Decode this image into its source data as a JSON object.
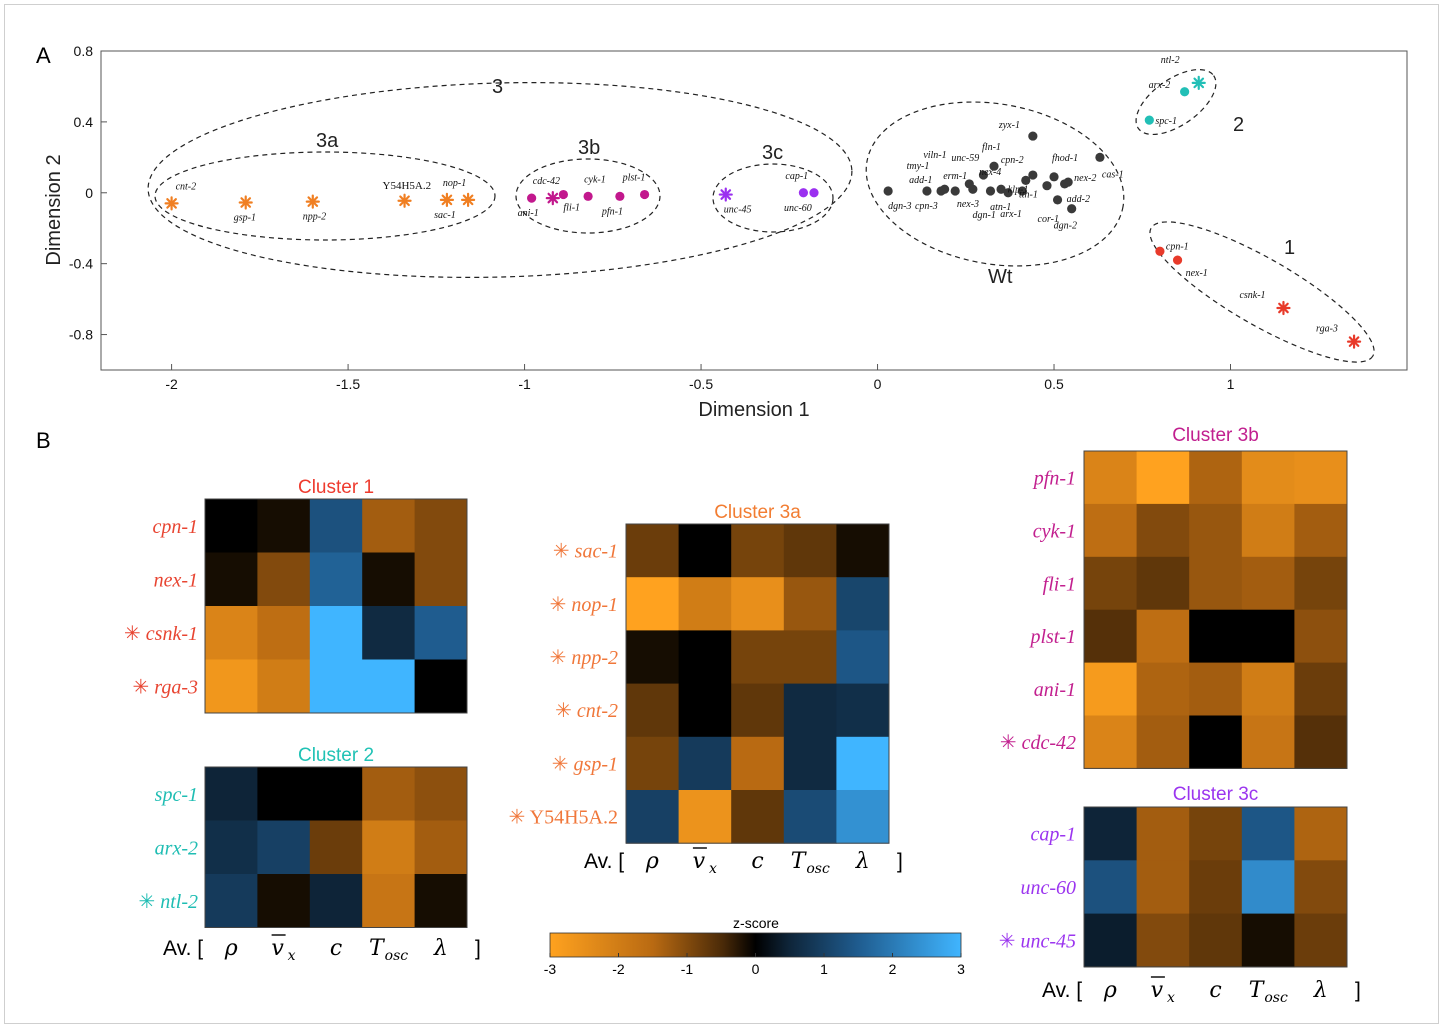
{
  "colors": {
    "orange": "#f07f22",
    "magenta": "#c2188d",
    "purple": "#9b30f0",
    "teal": "#22bfb6",
    "red": "#e83a2a",
    "wt": "#3a3a3a",
    "cluster1_title": "#ee3b2e",
    "cluster2_title": "#20c2b5",
    "cluster3a_title": "#f27d32",
    "cluster3b_title": "#c11f8f",
    "cluster3c_title": "#9b35ef"
  },
  "panel_a": {
    "letter": "A",
    "xlabel": "Dimension 1",
    "ylabel": "Dimension 2",
    "xticks": [
      "-2",
      "-1.5",
      "-1",
      "-0.5",
      "0",
      "0.5",
      "1"
    ],
    "yticks": [
      "0.8",
      "0.4",
      "0",
      "-0.4",
      "-0.8"
    ],
    "cluster_labels": {
      "c3": "3",
      "c3a": "3a",
      "c3b": "3b",
      "c3c": "3c",
      "wt": "Wt",
      "c2": "2",
      "c1": "1"
    }
  },
  "panel_b": {
    "letter": "B",
    "colorbar": {
      "title": "z-score",
      "ticks": [
        "-3",
        "-2",
        "-1",
        "0",
        "1",
        "2",
        "3"
      ],
      "range": [
        -3,
        3
      ]
    },
    "column_labels": {
      "av": "Av. [",
      "rho": "ρ",
      "v": "v",
      "v_sub": "x",
      "c": "c",
      "t": "T",
      "t_sub": "osc",
      "lambda": "λ",
      "close": "]"
    },
    "star": "✳"
  },
  "chart_data": [
    {
      "type": "scatter",
      "xlabel": "Dimension 1",
      "ylabel": "Dimension 2",
      "xlim": [
        -2.2,
        1.5
      ],
      "ylim": [
        -1.0,
        0.8
      ],
      "grid": false,
      "groups": [
        {
          "name": "3a",
          "color": "#f07f22",
          "points": [
            {
              "label": "cnt-2",
              "x": -2.0,
              "y": -0.06,
              "marker": "star"
            },
            {
              "label": "gsp-1",
              "x": -1.79,
              "y": -0.055,
              "marker": "star"
            },
            {
              "label": "npp-2",
              "x": -1.6,
              "y": -0.05,
              "marker": "star"
            },
            {
              "label": "Y54H5A.2",
              "x": -1.34,
              "y": -0.045,
              "marker": "star"
            },
            {
              "label": "nop-1",
              "x": -1.22,
              "y": -0.04,
              "marker": "star"
            },
            {
              "label": "sac-1",
              "x": -1.16,
              "y": -0.04,
              "marker": "star"
            }
          ]
        },
        {
          "name": "3b",
          "color": "#c2188d",
          "points": [
            {
              "label": "ani-1",
              "x": -0.98,
              "y": -0.03,
              "marker": "dot"
            },
            {
              "label": "cdc-42",
              "x": -0.92,
              "y": -0.03,
              "marker": "star"
            },
            {
              "label": "fli-1",
              "x": -0.89,
              "y": -0.01,
              "marker": "dot"
            },
            {
              "label": "cyk-1",
              "x": -0.82,
              "y": -0.02,
              "marker": "dot"
            },
            {
              "label": "pfn-1",
              "x": -0.73,
              "y": -0.02,
              "marker": "dot"
            },
            {
              "label": "plst-1",
              "x": -0.66,
              "y": -0.01,
              "marker": "dot"
            }
          ]
        },
        {
          "name": "3c",
          "color": "#9b30f0",
          "points": [
            {
              "label": "unc-45",
              "x": -0.43,
              "y": -0.01,
              "marker": "star"
            },
            {
              "label": "cap-1",
              "x": -0.21,
              "y": 0.0,
              "marker": "dot"
            },
            {
              "label": "unc-60",
              "x": -0.18,
              "y": 0.0,
              "marker": "dot"
            }
          ]
        },
        {
          "name": "Wt",
          "color": "#3a3a3a",
          "points": [
            {
              "label": "dgn-3",
              "x": 0.03,
              "y": 0.01,
              "marker": "dot"
            },
            {
              "label": "cpn-3",
              "x": 0.14,
              "y": 0.01,
              "marker": "dot"
            },
            {
              "label": "add-1",
              "x": 0.18,
              "y": 0.01,
              "marker": "dot"
            },
            {
              "label": "tmy-1",
              "x": 0.19,
              "y": 0.02,
              "marker": "dot"
            },
            {
              "label": "erm-1",
              "x": 0.22,
              "y": 0.01,
              "marker": "dot"
            },
            {
              "label": "viln-1",
              "x": 0.26,
              "y": 0.05,
              "marker": "dot"
            },
            {
              "label": "nex-3",
              "x": 0.27,
              "y": 0.02,
              "marker": "dot"
            },
            {
              "label": "unc-59",
              "x": 0.3,
              "y": 0.1,
              "marker": "dot"
            },
            {
              "label": "dgn-1",
              "x": 0.32,
              "y": 0.01,
              "marker": "dot"
            },
            {
              "label": "nex-4",
              "x": 0.35,
              "y": 0.02,
              "marker": "dot"
            },
            {
              "label": "fln-1",
              "x": 0.33,
              "y": 0.15,
              "marker": "dot"
            },
            {
              "label": "atn-1",
              "x": 0.37,
              "y": 0.0,
              "marker": "dot"
            },
            {
              "label": "arx-1",
              "x": 0.41,
              "y": 0.01,
              "marker": "dot"
            },
            {
              "label": "klp-1",
              "x": 0.42,
              "y": 0.07,
              "marker": "dot"
            },
            {
              "label": "cpn-2",
              "x": 0.44,
              "y": 0.1,
              "marker": "dot"
            },
            {
              "label": "zyx-1",
              "x": 0.44,
              "y": 0.32,
              "marker": "dot"
            },
            {
              "label": "tth-1",
              "x": 0.48,
              "y": 0.04,
              "marker": "dot"
            },
            {
              "label": "cor-1",
              "x": 0.51,
              "y": -0.04,
              "marker": "dot"
            },
            {
              "label": "fhod-1",
              "x": 0.5,
              "y": 0.09,
              "marker": "dot"
            },
            {
              "label": "nex-2",
              "x": 0.54,
              "y": 0.06,
              "marker": "dot"
            },
            {
              "label": "add-2",
              "x": 0.53,
              "y": 0.05,
              "marker": "dot"
            },
            {
              "label": "cas-1",
              "x": 0.63,
              "y": 0.2,
              "marker": "dot"
            },
            {
              "label": "dgn-2",
              "x": 0.55,
              "y": -0.09,
              "marker": "dot"
            }
          ]
        },
        {
          "name": "2",
          "color": "#22bfb6",
          "points": [
            {
              "label": "spc-1",
              "x": 0.77,
              "y": 0.41,
              "marker": "dot"
            },
            {
              "label": "arx-2",
              "x": 0.87,
              "y": 0.57,
              "marker": "dot"
            },
            {
              "label": "ntl-2",
              "x": 0.91,
              "y": 0.62,
              "marker": "star"
            }
          ]
        },
        {
          "name": "1",
          "color": "#e83a2a",
          "points": [
            {
              "label": "cpn-1",
              "x": 0.8,
              "y": -0.33,
              "marker": "dot"
            },
            {
              "label": "nex-1",
              "x": 0.85,
              "y": -0.38,
              "marker": "dot"
            },
            {
              "label": "csnk-1",
              "x": 1.15,
              "y": -0.65,
              "marker": "star"
            },
            {
              "label": "rga-3",
              "x": 1.35,
              "y": -0.84,
              "marker": "star"
            }
          ]
        }
      ]
    },
    {
      "type": "heatmap",
      "title": "Cluster 1",
      "title_color": "#ee3b2e",
      "row_color": "#e84532",
      "rows": [
        "cpn-1",
        "nex-1",
        "csnk-1",
        "rga-3"
      ],
      "row_star": [
        false,
        false,
        true,
        true
      ],
      "row_roman": [
        false,
        false,
        false,
        false
      ],
      "columns": [
        "ρ",
        "v̄x",
        "c",
        "Tosc",
        "λ"
      ],
      "values": [
        [
          0.0,
          -0.15,
          1.3,
          -1.3,
          -1.0
        ],
        [
          -0.15,
          -1.0,
          1.6,
          -0.15,
          -1.0
        ],
        [
          -2.2,
          -1.6,
          3.0,
          0.6,
          1.5
        ],
        [
          -2.7,
          -2.0,
          3.0,
          3.0,
          0.0
        ]
      ]
    },
    {
      "type": "heatmap",
      "title": "Cluster 2",
      "title_color": "#20c2b5",
      "row_color": "#1fbdb3",
      "rows": [
        "spc-1",
        "arx-2",
        "ntl-2"
      ],
      "row_star": [
        false,
        false,
        true
      ],
      "row_roman": [
        false,
        false,
        false
      ],
      "columns": [
        "ρ",
        "v̄x",
        "c",
        "Tosc",
        "λ"
      ],
      "values": [
        [
          0.5,
          0.0,
          0.0,
          -1.3,
          -1.1
        ],
        [
          0.7,
          1.0,
          -0.8,
          -2.0,
          -1.3
        ],
        [
          0.9,
          -0.15,
          0.5,
          -1.8,
          -0.15
        ]
      ]
    },
    {
      "type": "heatmap",
      "title": "Cluster 3a",
      "title_color": "#f27d32",
      "row_color": "#f0773a",
      "rows": [
        "sac-1",
        "nop-1",
        "npp-2",
        "cnt-2",
        "gsp-1",
        "Y54H5A.2"
      ],
      "row_star": [
        true,
        true,
        true,
        true,
        true,
        true
      ],
      "row_roman": [
        false,
        false,
        false,
        false,
        false,
        true
      ],
      "columns": [
        "ρ",
        "v̄x",
        "c",
        "Tosc",
        "λ"
      ],
      "values": [
        [
          -0.8,
          0.0,
          -0.9,
          -0.7,
          -0.15
        ],
        [
          -3.0,
          -2.0,
          -2.5,
          -1.2,
          1.1
        ],
        [
          -0.15,
          0.0,
          -0.9,
          -0.9,
          1.4
        ],
        [
          -0.7,
          0.0,
          -0.7,
          0.6,
          0.7
        ],
        [
          -0.9,
          0.9,
          -1.5,
          0.6,
          3.0
        ],
        [
          1.0,
          -2.6,
          -0.7,
          1.2,
          2.4
        ]
      ]
    },
    {
      "type": "heatmap",
      "title": "Cluster 3b",
      "title_color": "#c11f8f",
      "row_color": "#c2208f",
      "rows": [
        "pfn-1",
        "cyk-1",
        "fli-1",
        "plst-1",
        "ani-1",
        "cdc-42"
      ],
      "row_star": [
        false,
        false,
        false,
        false,
        false,
        true
      ],
      "row_roman": [
        false,
        false,
        false,
        false,
        false,
        false
      ],
      "columns": [
        "ρ",
        "v̄x",
        "c",
        "Tosc",
        "λ"
      ],
      "values": [
        [
          -2.2,
          -3.0,
          -1.4,
          -2.4,
          -2.5
        ],
        [
          -1.6,
          -1.0,
          -1.2,
          -2.0,
          -1.3
        ],
        [
          -0.9,
          -0.7,
          -1.2,
          -1.3,
          -0.9
        ],
        [
          -0.6,
          -1.6,
          0.0,
          0.0,
          -1.1
        ],
        [
          -2.8,
          -1.4,
          -1.3,
          -2.0,
          -0.8
        ],
        [
          -2.2,
          -1.3,
          0.0,
          -1.8,
          -0.6
        ]
      ]
    },
    {
      "type": "heatmap",
      "title": "Cluster 3c",
      "title_color": "#9b35ef",
      "row_color": "#9b35ef",
      "rows": [
        "cap-1",
        "unc-60",
        "unc-45"
      ],
      "row_star": [
        false,
        false,
        true
      ],
      "row_roman": [
        false,
        false,
        false
      ],
      "columns": [
        "ρ",
        "v̄x",
        "c",
        "Tosc",
        "λ"
      ],
      "values": [
        [
          0.5,
          -1.3,
          -0.9,
          1.4,
          -1.4
        ],
        [
          1.3,
          -1.3,
          -0.8,
          2.3,
          -1.0
        ],
        [
          0.4,
          -1.0,
          -0.7,
          -0.15,
          -0.8
        ]
      ]
    }
  ]
}
